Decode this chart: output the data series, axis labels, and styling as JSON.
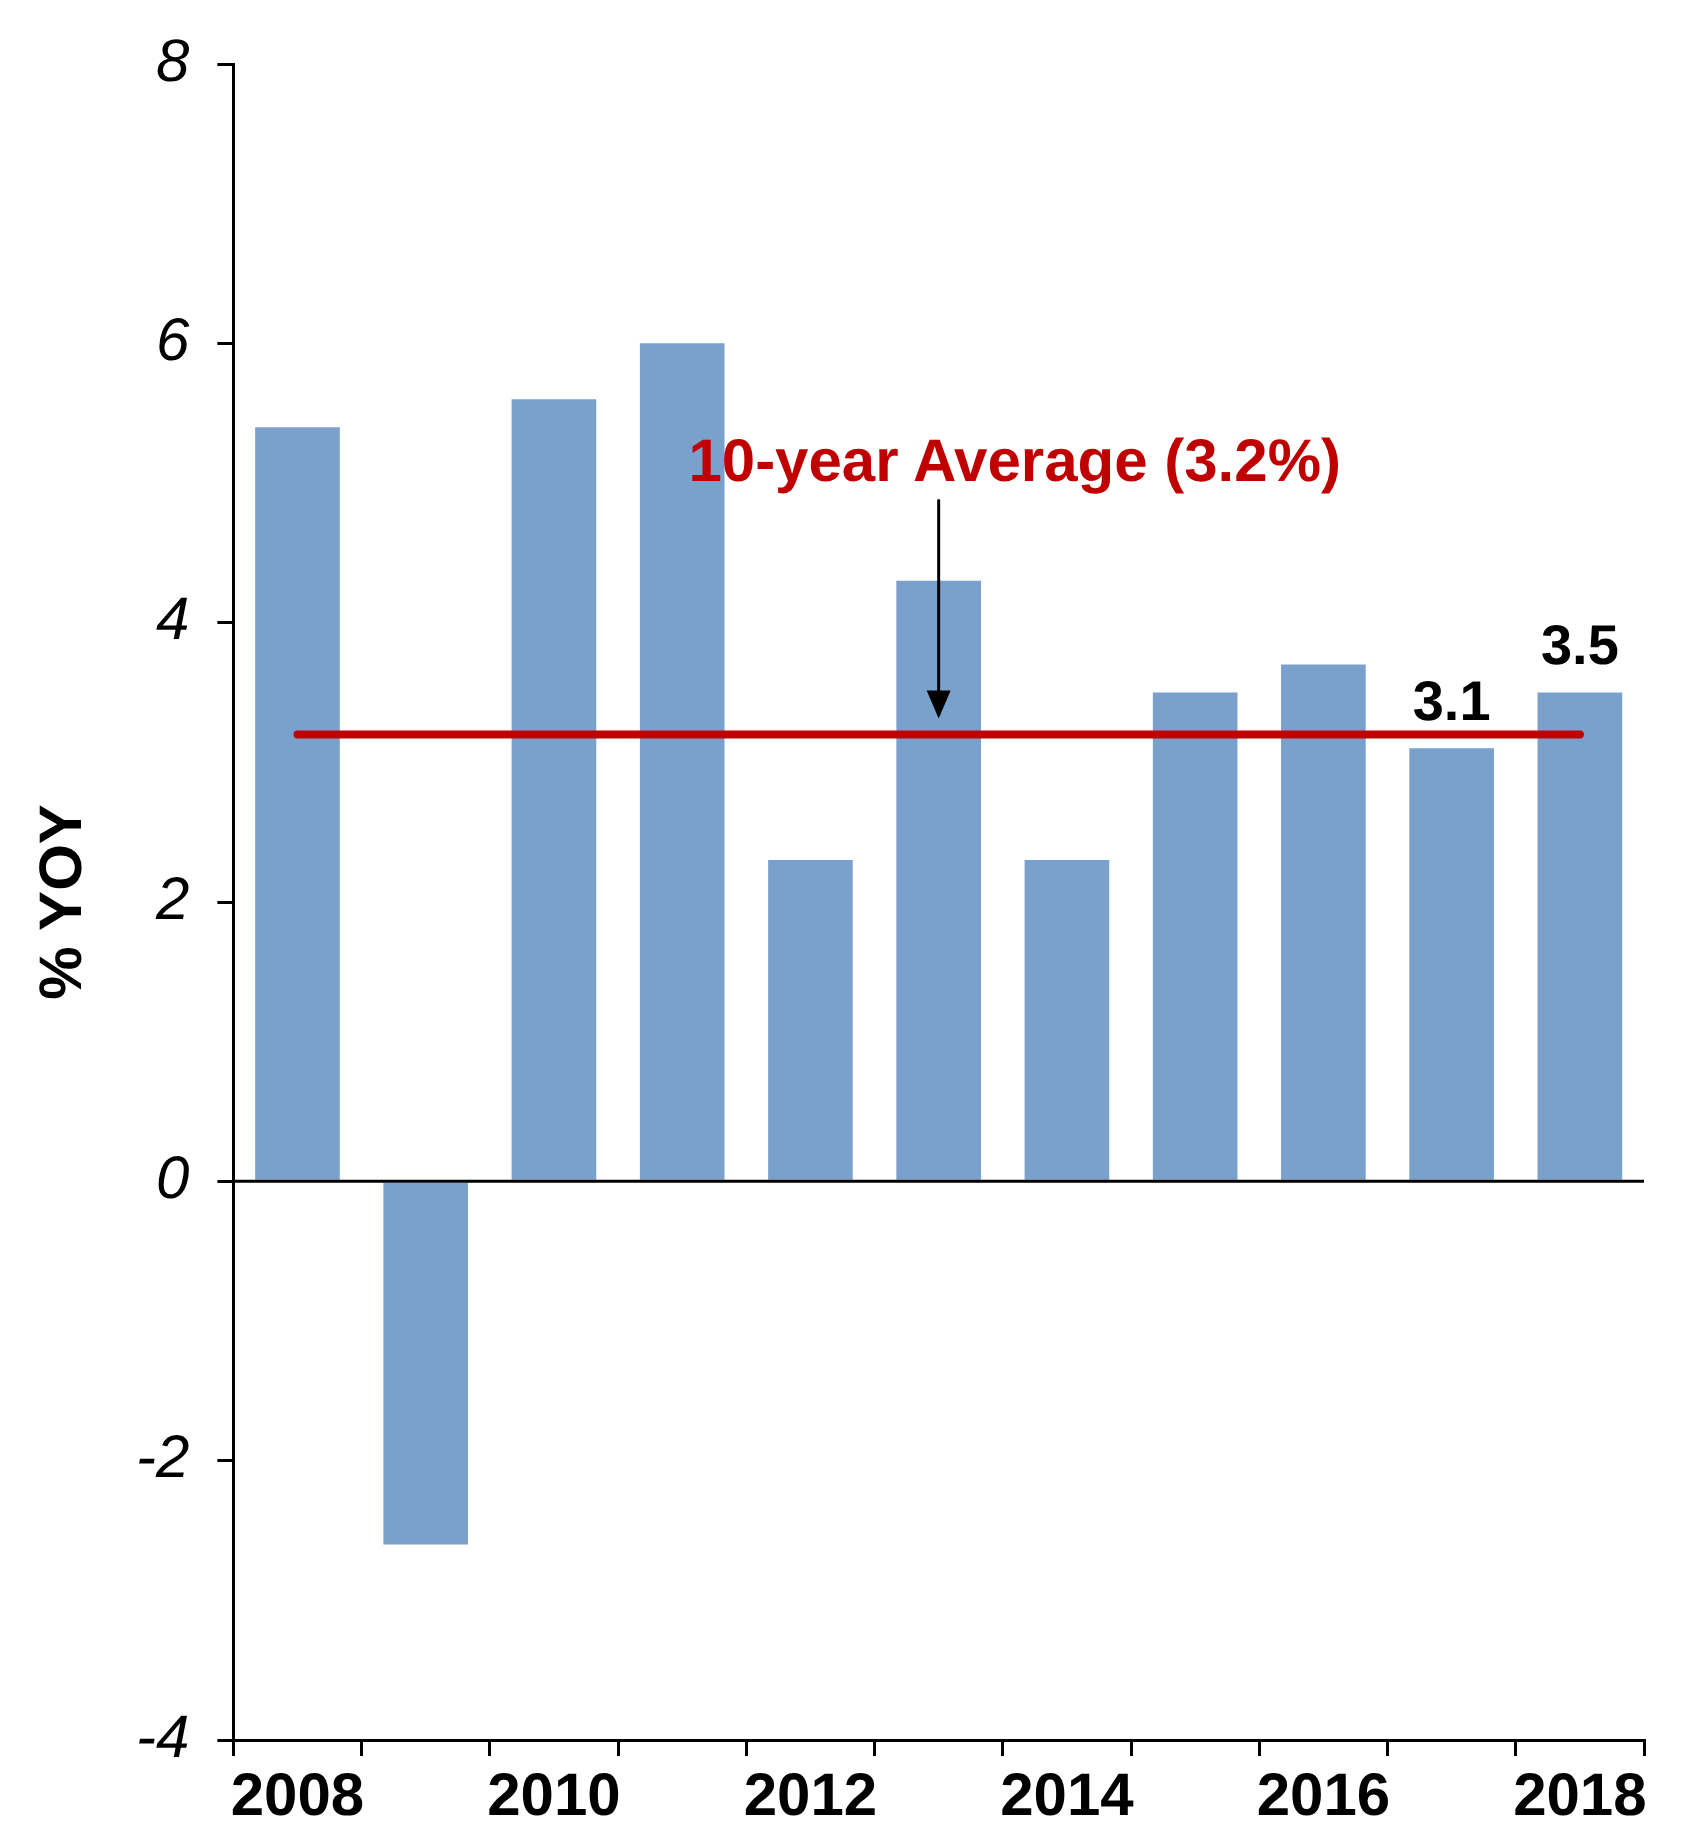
{
  "chart_data": {
    "type": "bar",
    "ylabel": "% YOY",
    "categories": [
      "2008",
      null,
      "2010",
      null,
      "2012",
      null,
      "2014",
      null,
      "2016",
      null,
      "2018"
    ],
    "values": [
      5.4,
      -2.6,
      5.6,
      6.0,
      2.3,
      4.3,
      2.3,
      3.5,
      3.7,
      3.1,
      3.5
    ],
    "value_labels": [
      null,
      null,
      null,
      null,
      null,
      null,
      null,
      null,
      null,
      "3.1",
      "3.5"
    ],
    "color": "#7aa0cc",
    "ylim": [
      -4,
      8
    ],
    "yticks": [
      -4,
      -2,
      0,
      2,
      4,
      6,
      8
    ],
    "ref_lines": [
      {
        "axis": "y",
        "value": 3.2,
        "label": "10-year Average (3.2%)",
        "color": "#c00000"
      }
    ],
    "legend": false
  }
}
